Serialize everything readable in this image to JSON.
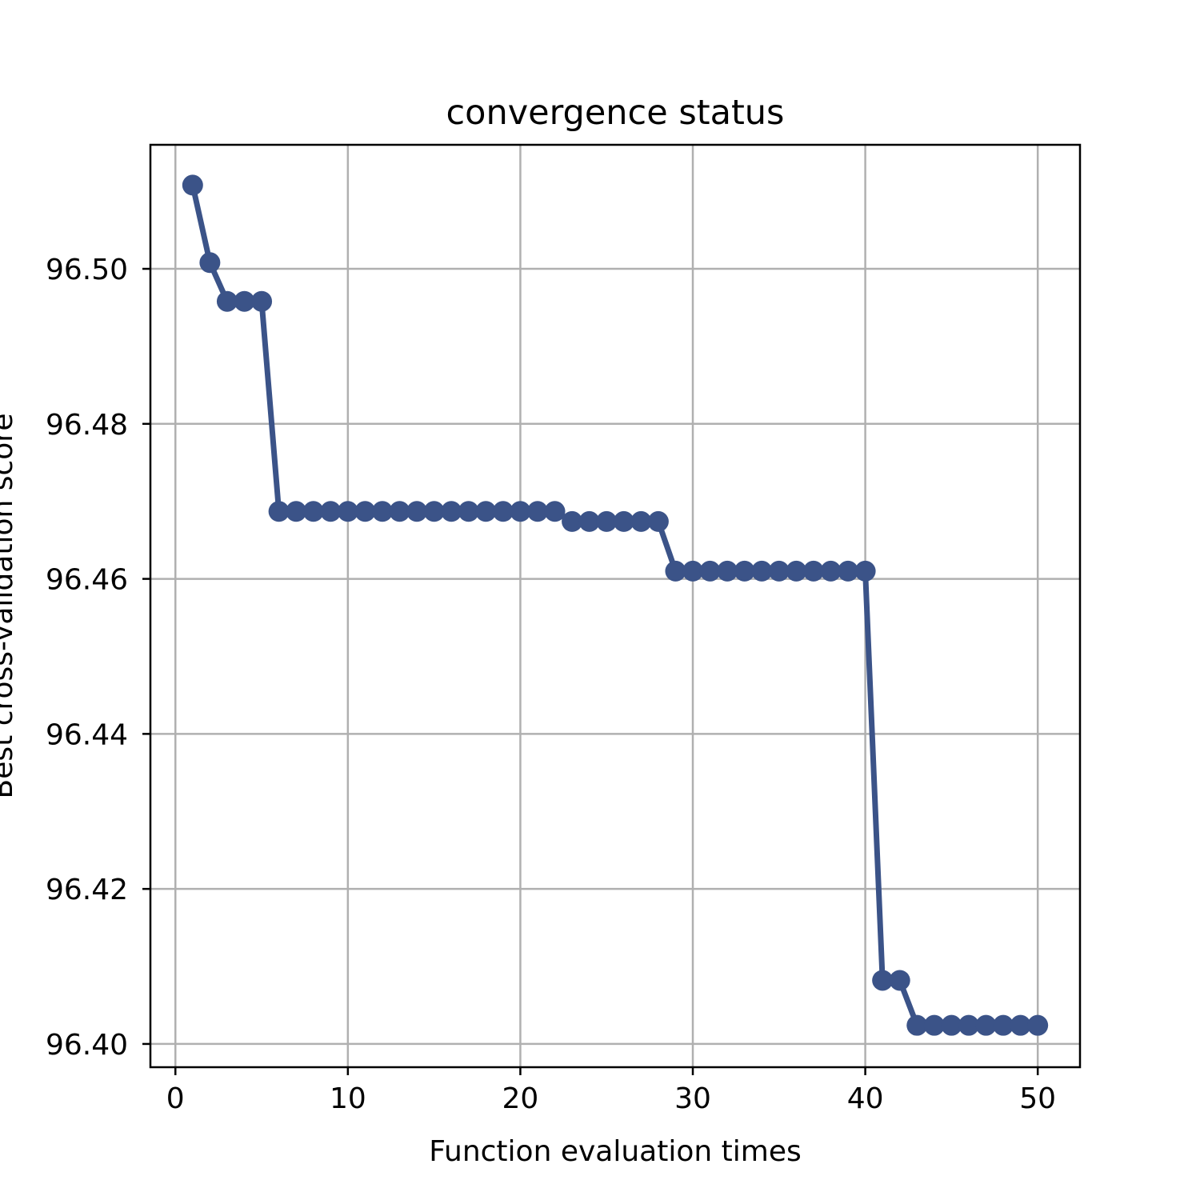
{
  "chart_data": {
    "type": "line",
    "title": "convergence status",
    "xlabel": "Function evaluation times",
    "ylabel": "Best cross-validation score",
    "xlim": [
      -1.45,
      52.45
    ],
    "ylim": [
      96.397,
      96.516
    ],
    "xticks": [
      0,
      10,
      20,
      30,
      40,
      50
    ],
    "xtick_labels": [
      "0",
      "10",
      "20",
      "30",
      "40",
      "50"
    ],
    "yticks": [
      96.4,
      96.42,
      96.44,
      96.46,
      96.48,
      96.5
    ],
    "ytick_labels": [
      "96.40",
      "96.42",
      "96.44",
      "96.46",
      "96.48",
      "96.50"
    ],
    "grid": true,
    "series": [
      {
        "color": "#3b5388",
        "marker": "circle",
        "x": [
          1,
          2,
          3,
          4,
          5,
          6,
          7,
          8,
          9,
          10,
          11,
          12,
          13,
          14,
          15,
          16,
          17,
          18,
          19,
          20,
          21,
          22,
          23,
          24,
          25,
          26,
          27,
          28,
          29,
          30,
          31,
          32,
          33,
          34,
          35,
          36,
          37,
          38,
          39,
          40,
          41,
          42,
          43,
          44,
          45,
          46,
          47,
          48,
          49,
          50
        ],
        "y": [
          96.5108,
          96.5008,
          96.4958,
          96.4958,
          96.4958,
          96.4687,
          96.4687,
          96.4687,
          96.4687,
          96.4687,
          96.4687,
          96.4687,
          96.4687,
          96.4687,
          96.4687,
          96.4687,
          96.4687,
          96.4687,
          96.4687,
          96.4687,
          96.4687,
          96.4687,
          96.4674,
          96.4674,
          96.4674,
          96.4674,
          96.4674,
          96.4674,
          96.461,
          96.461,
          96.461,
          96.461,
          96.461,
          96.461,
          96.461,
          96.461,
          96.461,
          96.461,
          96.461,
          96.461,
          96.4082,
          96.4082,
          96.4024,
          96.4024,
          96.4024,
          96.4024,
          96.4024,
          96.4024,
          96.4024,
          96.4024
        ]
      }
    ]
  }
}
